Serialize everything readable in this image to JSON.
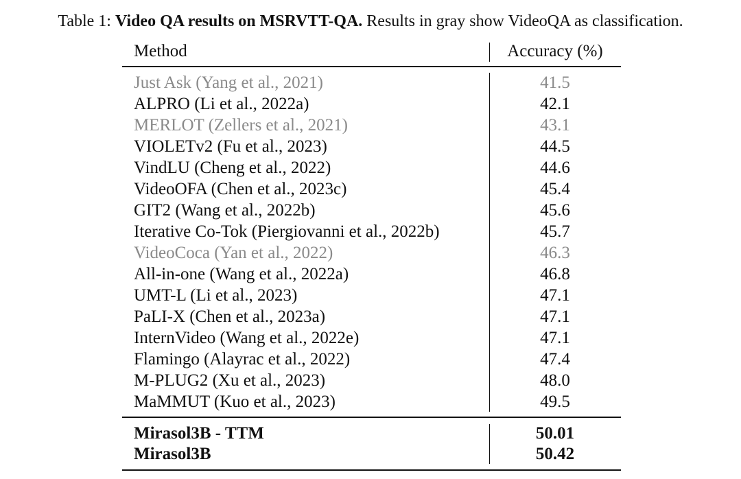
{
  "caption": {
    "label": "Table 1:",
    "title": "Video QA results on MSRVTT-QA.",
    "text": "Results in gray show VideoQA as classification."
  },
  "table": {
    "header": [
      "Method",
      "Accuracy (%)"
    ],
    "rows": [
      [
        "Just Ask (Yang et al., 2021)",
        "41.5"
      ],
      [
        "ALPRO (Li et al., 2022a)",
        "42.1"
      ],
      [
        "MERLOT (Zellers et al., 2021)",
        "43.1"
      ],
      [
        "VIOLETv2 (Fu et al., 2023)",
        "44.5"
      ],
      [
        "VindLU (Cheng et al., 2022)",
        "44.6"
      ],
      [
        "VideoOFA (Chen et al., 2023c)",
        "45.4"
      ],
      [
        "GIT2 (Wang et al., 2022b)",
        "45.6"
      ],
      [
        "Iterative Co-Tok (Piergiovanni et al., 2022b)",
        "45.7"
      ],
      [
        "VideoCoca (Yan et al., 2022)",
        "46.3"
      ],
      [
        "All-in-one (Wang et al., 2022a)",
        "46.8"
      ],
      [
        "UMT-L (Li et al., 2023)",
        "47.1"
      ],
      [
        "PaLI-X (Chen et al., 2023a)",
        "47.1"
      ],
      [
        "InternVideo (Wang et al., 2022e)",
        "47.1"
      ],
      [
        "Flamingo (Alayrac et al., 2022)",
        "47.4"
      ],
      [
        "M-PLUG2 (Xu et al., 2023)",
        "48.0"
      ],
      [
        "MaMMUT (Kuo et al., 2023)",
        "49.5"
      ]
    ],
    "gray_rows": [
      0,
      2,
      8
    ],
    "gray_color": "#8a8a8a",
    "bold_rows": [
      [
        "Mirasol3B - TTM",
        "50.01"
      ],
      [
        "Mirasol3B",
        "50.42"
      ]
    ]
  }
}
